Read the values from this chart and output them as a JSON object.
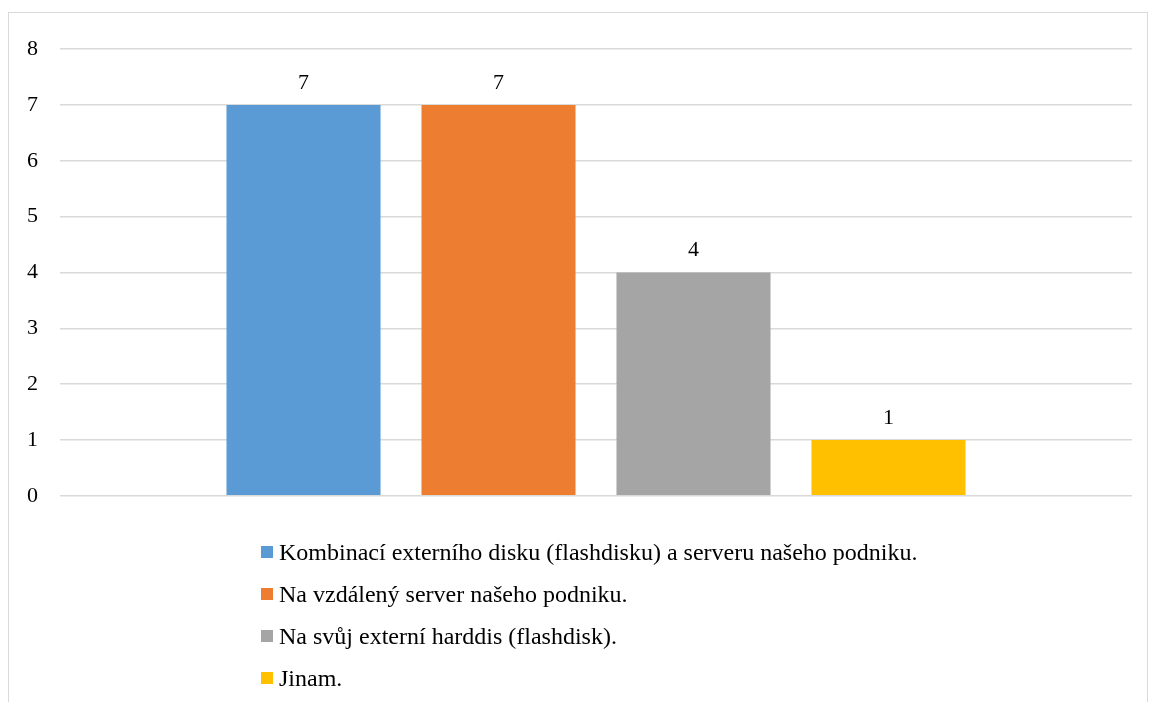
{
  "chart_data": {
    "type": "bar",
    "categories": [
      null
    ],
    "series": [
      {
        "name": "Kombinací externího disku (flashdisku) a serveru našeho podniku.",
        "color": "#5b9bd5",
        "values": [
          7
        ]
      },
      {
        "name": "Na vzdálený server našeho podniku.",
        "color": "#ed7d31",
        "values": [
          7
        ]
      },
      {
        "name": "Na svůj externí harddis (flashdisk).",
        "color": "#a5a5a5",
        "values": [
          4
        ]
      },
      {
        "name": "Jinam.",
        "color": "#ffc000",
        "values": [
          1
        ]
      }
    ],
    "ylim": [
      0,
      8
    ],
    "yticks": [
      0,
      1,
      2,
      3,
      4,
      5,
      6,
      7,
      8
    ],
    "grid": "y",
    "legend": "bottom",
    "data_labels": true
  }
}
